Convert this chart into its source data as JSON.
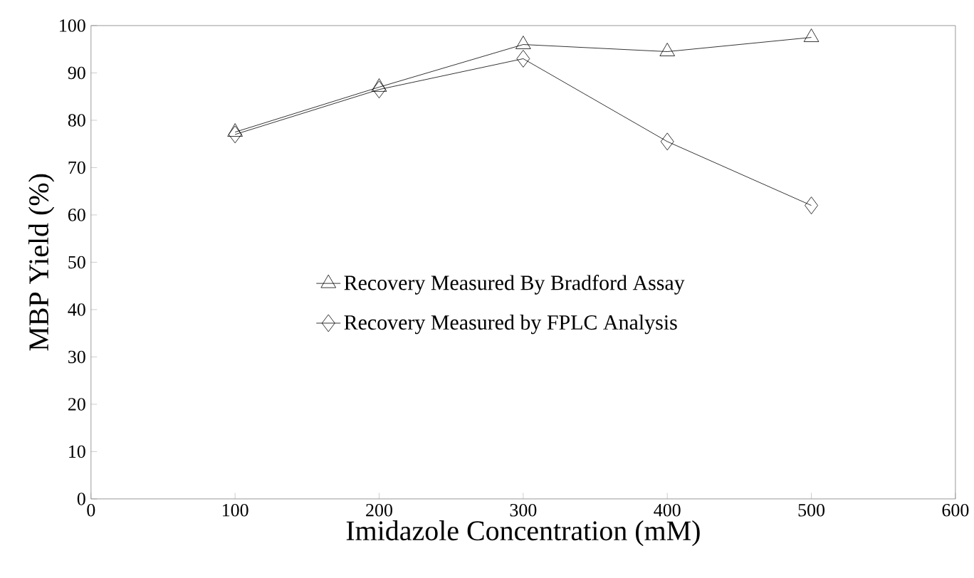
{
  "chart_data": {
    "type": "line",
    "xlabel": "Imidazole Concentration (mM)",
    "ylabel": "MBP Yield (%)",
    "x": [
      100,
      200,
      300,
      400,
      500
    ],
    "series": [
      {
        "name": "Recovery Measured By Bradford Assay",
        "color": "#000000",
        "marker": "triangle",
        "values": [
          77.5,
          87,
          96,
          94.5,
          97.5
        ]
      },
      {
        "name": "Recovery Measured by FPLC Analysis",
        "color": "#000000",
        "marker": "diamond",
        "values": [
          77,
          86.5,
          93,
          75.5,
          62
        ]
      }
    ],
    "xlim": [
      0,
      600
    ],
    "xticks": [
      0,
      100,
      200,
      300,
      400,
      500,
      600
    ],
    "ylim": [
      0,
      100
    ],
    "yticks": [
      0,
      10,
      20,
      30,
      40,
      50,
      60,
      70,
      80,
      90,
      100
    ],
    "grid": false,
    "legend": "center",
    "line_style": "solid"
  }
}
